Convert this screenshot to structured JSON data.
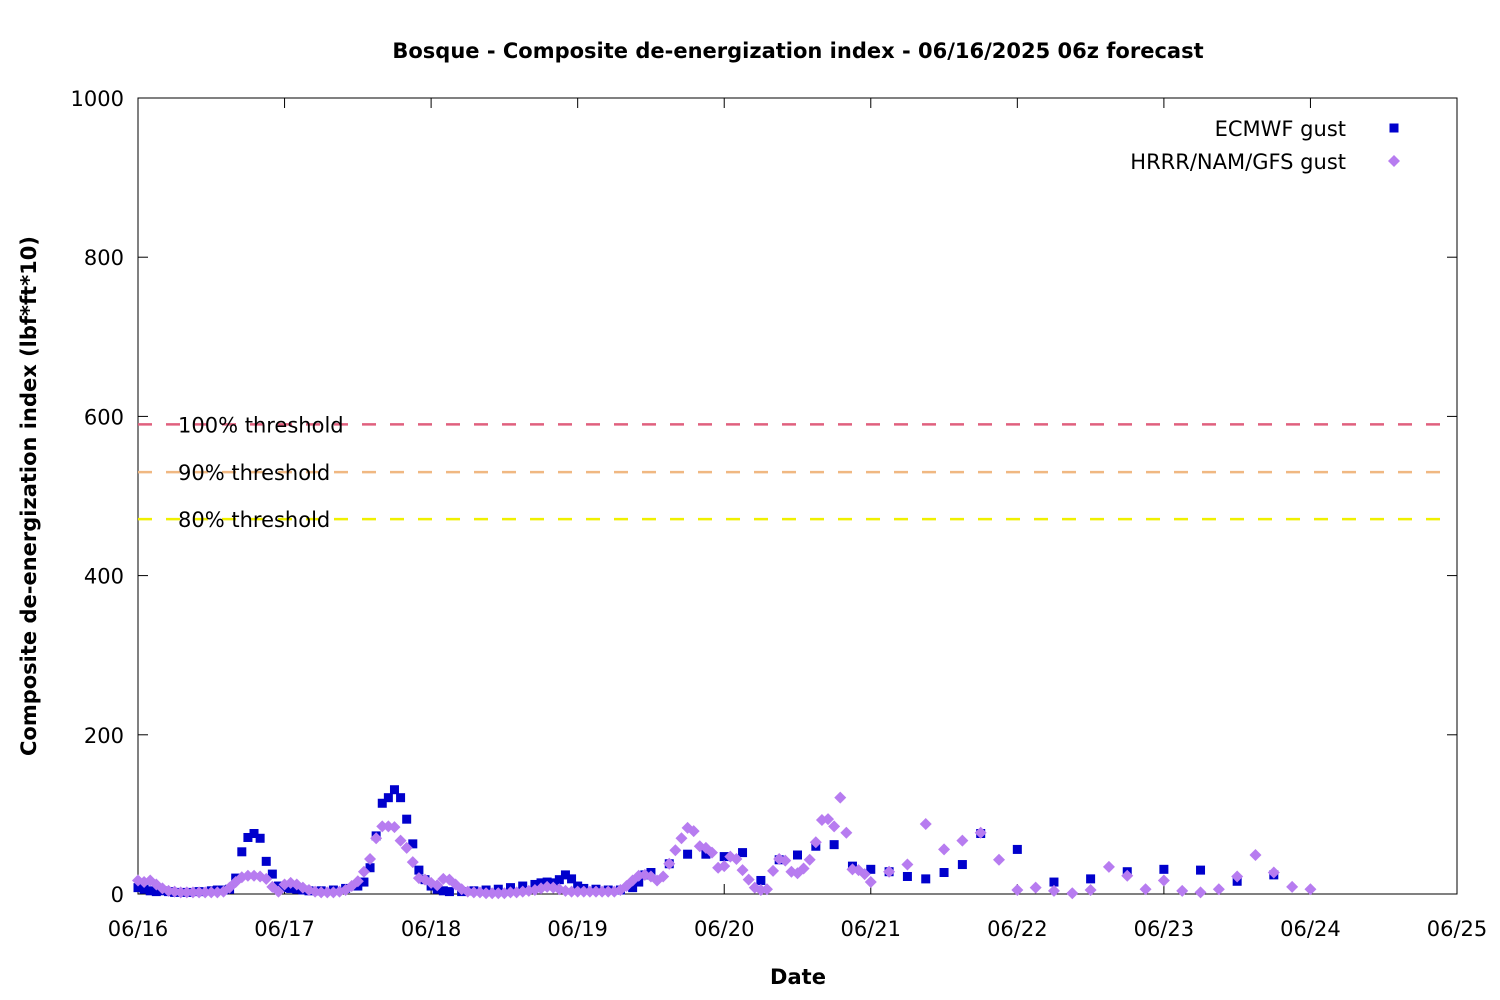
{
  "chart_data": {
    "type": "scatter",
    "title": "Bosque - Composite de-energization index - 06/16/2025 06z forecast",
    "xlabel": "Date",
    "ylabel": "Composite de-energization index (lbf*ft*10)",
    "xlim": [
      "06/16",
      "06/25"
    ],
    "ylim": [
      0,
      1000
    ],
    "x_ticks": [
      "06/16",
      "06/17",
      "06/18",
      "06/19",
      "06/20",
      "06/21",
      "06/22",
      "06/23",
      "06/24",
      "06/25"
    ],
    "y_ticks": [
      "0",
      "200",
      "400",
      "600",
      "800",
      "1000"
    ],
    "grid": false,
    "legend_position": "top-right",
    "thresholds": [
      {
        "label": "100% threshold",
        "value": 590,
        "color": "#e0607e"
      },
      {
        "label": "90% threshold",
        "value": 530,
        "color": "#f0b882"
      },
      {
        "label": "80% threshold",
        "value": 471,
        "color": "#f0f000"
      }
    ],
    "series": [
      {
        "name": "ECMWF gust",
        "color": "#0000cc",
        "marker": "square",
        "points": [
          [
            "06/16 00:00",
            8
          ],
          [
            "06/16 01:00",
            6
          ],
          [
            "06/16 02:00",
            4
          ],
          [
            "06/16 03:00",
            3
          ],
          [
            "06/16 04:00",
            4
          ],
          [
            "06/16 05:00",
            3
          ],
          [
            "06/16 06:00",
            2
          ],
          [
            "06/16 08:00",
            2
          ],
          [
            "06/16 10:00",
            3
          ],
          [
            "06/16 12:00",
            4
          ],
          [
            "06/16 13:00",
            5
          ],
          [
            "06/16 14:00",
            5
          ],
          [
            "06/16 15:00",
            6
          ],
          [
            "06/16 16:00",
            20
          ],
          [
            "06/16 17:00",
            53
          ],
          [
            "06/16 18:00",
            71
          ],
          [
            "06/16 19:00",
            76
          ],
          [
            "06/16 20:00",
            70
          ],
          [
            "06/16 21:00",
            41
          ],
          [
            "06/16 22:00",
            25
          ],
          [
            "06/16 23:00",
            10
          ],
          [
            "06/17 00:00",
            8
          ],
          [
            "06/17 01:00",
            7
          ],
          [
            "06/17 02:00",
            6
          ],
          [
            "06/17 03:00",
            5
          ],
          [
            "06/17 04:00",
            4
          ],
          [
            "06/17 06:00",
            4
          ],
          [
            "06/17 08:00",
            5
          ],
          [
            "06/17 10:00",
            7
          ],
          [
            "06/17 12:00",
            10
          ],
          [
            "06/17 13:00",
            15
          ],
          [
            "06/17 14:00",
            33
          ],
          [
            "06/17 15:00",
            73
          ],
          [
            "06/17 16:00",
            114
          ],
          [
            "06/17 17:00",
            121
          ],
          [
            "06/17 18:00",
            131
          ],
          [
            "06/17 19:00",
            121
          ],
          [
            "06/17 20:00",
            94
          ],
          [
            "06/17 21:00",
            63
          ],
          [
            "06/17 22:00",
            30
          ],
          [
            "06/17 23:00",
            18
          ],
          [
            "06/18 00:00",
            10
          ],
          [
            "06/18 01:00",
            6
          ],
          [
            "06/18 02:00",
            4
          ],
          [
            "06/18 03:00",
            3
          ],
          [
            "06/18 05:00",
            3
          ],
          [
            "06/18 07:00",
            4
          ],
          [
            "06/18 09:00",
            5
          ],
          [
            "06/18 11:00",
            6
          ],
          [
            "06/18 13:00",
            8
          ],
          [
            "06/18 15:00",
            10
          ],
          [
            "06/18 17:00",
            12
          ],
          [
            "06/18 18:00",
            14
          ],
          [
            "06/18 19:00",
            15
          ],
          [
            "06/18 20:00",
            14
          ],
          [
            "06/18 21:00",
            18
          ],
          [
            "06/18 22:00",
            24
          ],
          [
            "06/18 23:00",
            19
          ],
          [
            "06/19 00:00",
            10
          ],
          [
            "06/19 01:00",
            7
          ],
          [
            "06/19 03:00",
            6
          ],
          [
            "06/19 05:00",
            5
          ],
          [
            "06/19 07:00",
            5
          ],
          [
            "06/19 09:00",
            8
          ],
          [
            "06/19 10:00",
            15
          ],
          [
            "06/19 11:00",
            24
          ],
          [
            "06/19 12:00",
            27
          ],
          [
            "06/19 15:00",
            38
          ],
          [
            "06/19 18:00",
            50
          ],
          [
            "06/19 21:00",
            50
          ],
          [
            "06/20 00:00",
            47
          ],
          [
            "06/20 03:00",
            52
          ],
          [
            "06/20 06:00",
            17
          ],
          [
            "06/20 09:00",
            43
          ],
          [
            "06/20 12:00",
            49
          ],
          [
            "06/20 15:00",
            60
          ],
          [
            "06/20 18:00",
            62
          ],
          [
            "06/20 21:00",
            35
          ],
          [
            "06/21 00:00",
            31
          ],
          [
            "06/21 03:00",
            28
          ],
          [
            "06/21 06:00",
            22
          ],
          [
            "06/21 09:00",
            19
          ],
          [
            "06/21 12:00",
            27
          ],
          [
            "06/21 15:00",
            37
          ],
          [
            "06/21 18:00",
            76
          ],
          [
            "06/22 00:00",
            56
          ],
          [
            "06/22 06:00",
            15
          ],
          [
            "06/22 12:00",
            19
          ],
          [
            "06/22 18:00",
            28
          ],
          [
            "06/23 00:00",
            31
          ],
          [
            "06/23 06:00",
            30
          ],
          [
            "06/23 12:00",
            16
          ],
          [
            "06/23 18:00",
            24
          ]
        ]
      },
      {
        "name": "HRRR/NAM/GFS gust",
        "color": "#b77cf0",
        "marker": "diamond",
        "points": [
          [
            "06/16 00:00",
            17
          ],
          [
            "06/16 01:00",
            15
          ],
          [
            "06/16 02:00",
            17
          ],
          [
            "06/16 03:00",
            12
          ],
          [
            "06/16 04:00",
            7
          ],
          [
            "06/16 05:00",
            4
          ],
          [
            "06/16 06:00",
            3
          ],
          [
            "06/16 07:00",
            2
          ],
          [
            "06/16 08:00",
            2
          ],
          [
            "06/16 09:00",
            2
          ],
          [
            "06/16 10:00",
            2
          ],
          [
            "06/16 11:00",
            2
          ],
          [
            "06/16 12:00",
            2
          ],
          [
            "06/16 13:00",
            2
          ],
          [
            "06/16 14:00",
            3
          ],
          [
            "06/16 15:00",
            8
          ],
          [
            "06/16 16:00",
            15
          ],
          [
            "06/16 17:00",
            21
          ],
          [
            "06/16 18:00",
            23
          ],
          [
            "06/16 19:00",
            23
          ],
          [
            "06/16 20:00",
            22
          ],
          [
            "06/16 21:00",
            19
          ],
          [
            "06/16 22:00",
            9
          ],
          [
            "06/16 23:00",
            3
          ],
          [
            "06/17 00:00",
            12
          ],
          [
            "06/17 01:00",
            14
          ],
          [
            "06/17 02:00",
            12
          ],
          [
            "06/17 03:00",
            8
          ],
          [
            "06/17 04:00",
            5
          ],
          [
            "06/17 05:00",
            3
          ],
          [
            "06/17 06:00",
            2
          ],
          [
            "06/17 07:00",
            2
          ],
          [
            "06/17 08:00",
            2
          ],
          [
            "06/17 09:00",
            3
          ],
          [
            "06/17 10:00",
            5
          ],
          [
            "06/17 11:00",
            10
          ],
          [
            "06/17 12:00",
            16
          ],
          [
            "06/17 13:00",
            28
          ],
          [
            "06/17 14:00",
            44
          ],
          [
            "06/17 15:00",
            70
          ],
          [
            "06/17 16:00",
            85
          ],
          [
            "06/17 17:00",
            85
          ],
          [
            "06/17 18:00",
            84
          ],
          [
            "06/17 19:00",
            67
          ],
          [
            "06/17 20:00",
            58
          ],
          [
            "06/17 21:00",
            40
          ],
          [
            "06/17 22:00",
            20
          ],
          [
            "06/17 23:00",
            18
          ],
          [
            "06/18 00:00",
            14
          ],
          [
            "06/18 01:00",
            11
          ],
          [
            "06/18 02:00",
            19
          ],
          [
            "06/18 03:00",
            18
          ],
          [
            "06/18 04:00",
            12
          ],
          [
            "06/18 05:00",
            6
          ],
          [
            "06/18 06:00",
            3
          ],
          [
            "06/18 07:00",
            2
          ],
          [
            "06/18 08:00",
            2
          ],
          [
            "06/18 09:00",
            1
          ],
          [
            "06/18 10:00",
            1
          ],
          [
            "06/18 11:00",
            1
          ],
          [
            "06/18 12:00",
            1
          ],
          [
            "06/18 13:00",
            2
          ],
          [
            "06/18 14:00",
            2
          ],
          [
            "06/18 15:00",
            3
          ],
          [
            "06/18 16:00",
            4
          ],
          [
            "06/18 17:00",
            5
          ],
          [
            "06/18 18:00",
            7
          ],
          [
            "06/18 19:00",
            9
          ],
          [
            "06/18 20:00",
            8
          ],
          [
            "06/18 21:00",
            6
          ],
          [
            "06/18 22:00",
            4
          ],
          [
            "06/18 23:00",
            3
          ],
          [
            "06/19 00:00",
            3
          ],
          [
            "06/19 01:00",
            3
          ],
          [
            "06/19 02:00",
            3
          ],
          [
            "06/19 03:00",
            3
          ],
          [
            "06/19 04:00",
            3
          ],
          [
            "06/19 05:00",
            3
          ],
          [
            "06/19 06:00",
            3
          ],
          [
            "06/19 07:00",
            5
          ],
          [
            "06/19 08:00",
            10
          ],
          [
            "06/19 09:00",
            17
          ],
          [
            "06/19 10:00",
            23
          ],
          [
            "06/19 11:00",
            24
          ],
          [
            "06/19 12:00",
            22
          ],
          [
            "06/19 13:00",
            17
          ],
          [
            "06/19 14:00",
            22
          ],
          [
            "06/19 15:00",
            38
          ],
          [
            "06/19 16:00",
            55
          ],
          [
            "06/19 17:00",
            70
          ],
          [
            "06/19 18:00",
            83
          ],
          [
            "06/19 19:00",
            79
          ],
          [
            "06/19 20:00",
            60
          ],
          [
            "06/19 21:00",
            58
          ],
          [
            "06/19 22:00",
            52
          ],
          [
            "06/19 23:00",
            33
          ],
          [
            "06/20 00:00",
            35
          ],
          [
            "06/20 01:00",
            47
          ],
          [
            "06/20 02:00",
            44
          ],
          [
            "06/20 03:00",
            30
          ],
          [
            "06/20 04:00",
            18
          ],
          [
            "06/20 05:00",
            8
          ],
          [
            "06/20 06:00",
            5
          ],
          [
            "06/20 07:00",
            6
          ],
          [
            "06/20 08:00",
            29
          ],
          [
            "06/20 09:00",
            44
          ],
          [
            "06/20 10:00",
            42
          ],
          [
            "06/20 11:00",
            28
          ],
          [
            "06/20 12:00",
            26
          ],
          [
            "06/20 13:00",
            32
          ],
          [
            "06/20 14:00",
            43
          ],
          [
            "06/20 15:00",
            65
          ],
          [
            "06/20 16:00",
            93
          ],
          [
            "06/20 17:00",
            94
          ],
          [
            "06/20 18:00",
            85
          ],
          [
            "06/20 19:00",
            121
          ],
          [
            "06/20 20:00",
            77
          ],
          [
            "06/20 21:00",
            31
          ],
          [
            "06/20 22:00",
            30
          ],
          [
            "06/20 23:00",
            25
          ],
          [
            "06/21 00:00",
            15
          ],
          [
            "06/21 03:00",
            28
          ],
          [
            "06/21 06:00",
            37
          ],
          [
            "06/21 09:00",
            88
          ],
          [
            "06/21 12:00",
            56
          ],
          [
            "06/21 15:00",
            67
          ],
          [
            "06/21 18:00",
            77
          ],
          [
            "06/21 21:00",
            43
          ],
          [
            "06/22 00:00",
            5
          ],
          [
            "06/22 03:00",
            8
          ],
          [
            "06/22 06:00",
            4
          ],
          [
            "06/22 09:00",
            1
          ],
          [
            "06/22 12:00",
            5
          ],
          [
            "06/22 15:00",
            34
          ],
          [
            "06/22 18:00",
            23
          ],
          [
            "06/22 21:00",
            6
          ],
          [
            "06/23 00:00",
            17
          ],
          [
            "06/23 03:00",
            4
          ],
          [
            "06/23 06:00",
            2
          ],
          [
            "06/23 09:00",
            6
          ],
          [
            "06/23 12:00",
            22
          ],
          [
            "06/23 15:00",
            49
          ],
          [
            "06/23 18:00",
            27
          ],
          [
            "06/23 21:00",
            9
          ],
          [
            "06/24 00:00",
            6
          ]
        ]
      }
    ]
  }
}
